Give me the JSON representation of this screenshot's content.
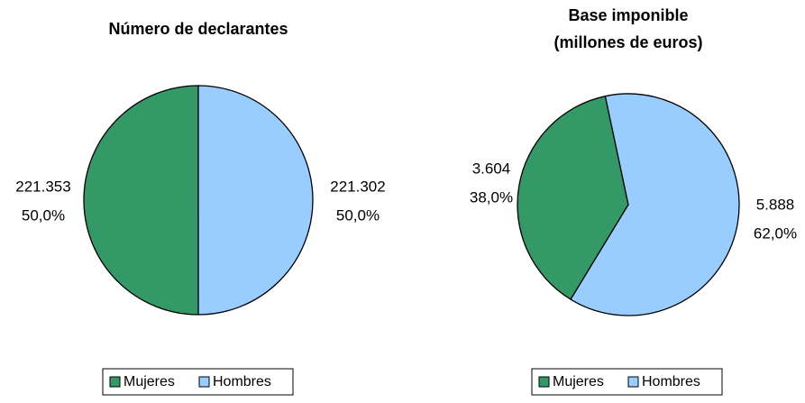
{
  "chart_data": [
    {
      "type": "pie",
      "title": "Número de declarantes",
      "categories": [
        "Mujeres",
        "Hombres"
      ],
      "colors": [
        "#339966",
        "#99ccff"
      ],
      "values": [
        221353,
        221302
      ],
      "value_labels": [
        "221.353",
        "221.302"
      ],
      "percents": [
        50.0,
        50.0
      ],
      "percent_labels": [
        "50,0%",
        "50,0%"
      ],
      "legend": "bottom"
    },
    {
      "type": "pie",
      "title": [
        "Base imponible",
        "(millones de euros)"
      ],
      "categories": [
        "Mujeres",
        "Hombres"
      ],
      "colors": [
        "#339966",
        "#99ccff"
      ],
      "values": [
        3604,
        5888
      ],
      "value_labels": [
        "3.604",
        "5.888"
      ],
      "percents": [
        38.0,
        62.0
      ],
      "percent_labels": [
        "38,0%",
        "62,0%"
      ],
      "legend": "bottom"
    }
  ]
}
